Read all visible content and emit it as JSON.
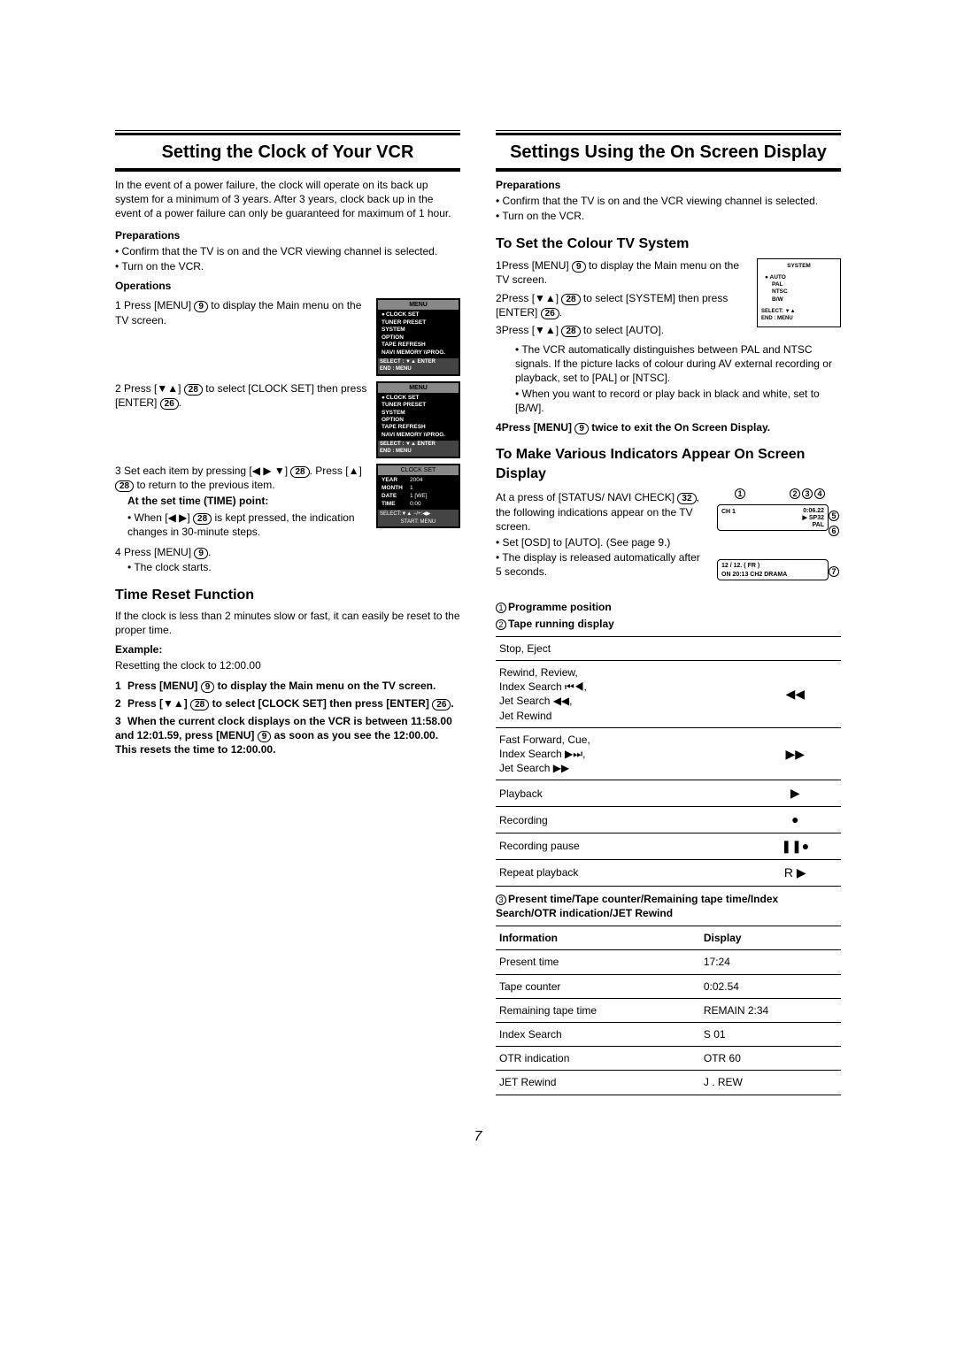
{
  "left": {
    "heading": "Setting the Clock of Your VCR",
    "intro": "In the event of a power failure, the clock will operate on its back up system for a minimum of 3 years. After 3 years, clock back up in the event of a power failure can only be guaranteed for maximum of 1 hour.",
    "prep_h": "Preparations",
    "prep": [
      "Confirm that the TV is on and the VCR viewing channel is selected.",
      "Turn on the VCR."
    ],
    "ops_h": "Operations",
    "step1": "Press [MENU] ",
    "step1b": " to display the Main menu on the TV screen.",
    "step2": "Press [▼▲] ",
    "step2b": " to select [CLOCK SET] then press [ENTER] ",
    "step2c": ".",
    "step3": "Set each item by pressing [◀ ▶ ▼] ",
    "step3b": ". Press [▲] ",
    "step3c": " to return to the previous item.",
    "step3_sub_h": "At the set time (TIME) point:",
    "step3_sub": "When [◀ ▶] ",
    "step3_sub2": " is kept pressed, the indication changes in 30-minute steps.",
    "step4": "Press [MENU] ",
    "step4b": ".",
    "step4_sub": "The clock starts.",
    "time_reset_h": "Time Reset Function",
    "time_reset_p": "If the clock is less than 2 minutes slow or fast, it can easily be reset to the proper time.",
    "example_h": "Example:",
    "example_p": "Resetting the clock to 12:00.00",
    "tr1": "Press [MENU] ",
    "tr1b": " to display the Main menu on the TV screen.",
    "tr2": "Press [▼▲] ",
    "tr2b": " to select [CLOCK SET] then press [ENTER] ",
    "tr2c": ".",
    "tr3a": "When the current clock displays on the VCR is between 11:58.00 and 12:01.59, press [MENU] ",
    "tr3b": " as soon as you see the 12:00.00. This resets the time to 12:00.00.",
    "osd_menu": {
      "title": "MENU",
      "items": [
        "CLOCK SET",
        "TUNER PRESET",
        "SYSTEM",
        "OPTION",
        "TAPE REFRESH",
        "NAVI MEMORY \\\\PROG."
      ],
      "footer1": "SELECT : ▼▲ ENTER",
      "footer2": "END       : MENU"
    },
    "osd_clock": {
      "title": "CLOCK  SET",
      "rows": [
        [
          "YEAR",
          "2004"
        ],
        [
          "MONTH",
          "1"
        ],
        [
          "DATE",
          "1 [WE]"
        ],
        [
          "TIME",
          "0:00"
        ]
      ],
      "footer": "SELECT:▼▲          −/+:◀▶",
      "footer2": "START: MENU"
    }
  },
  "right": {
    "heading": "Settings Using the On Screen Display",
    "prep_h": "Preparations",
    "prep": [
      "Confirm that the TV is on and the VCR viewing channel is selected.",
      "Turn on the VCR."
    ],
    "colour_h": "To Set the Colour TV System",
    "c1a": "Press [MENU] ",
    "c1b": " to display the Main menu on the TV screen.",
    "c2a": "Press [▼▲] ",
    "c2b": " to select [SYSTEM] then press [ENTER] ",
    "c2c": ".",
    "c3a": "Press [▼▲] ",
    "c3b": " to select [AUTO].",
    "c3_sub1": "The VCR automatically distinguishes between PAL and NTSC signals. If the picture lacks of colour during AV external recording or playback, set to [PAL] or [NTSC].",
    "c3_sub2": "When you want to record or play back in black and white, set to [B/W].",
    "c4a": "Press [MENU] ",
    "c4b": " twice to exit the On Screen Display.",
    "sys_box": {
      "title": "SYSTEM",
      "items": [
        "AUTO",
        "PAL",
        "NTSC",
        "B/W"
      ],
      "f1": "SELECT: ▼▲",
      "f2": "END     : MENU"
    },
    "indicators_h": "To Make Various Indicators Appear On Screen Display",
    "ind_p1": "At a press of [STATUS/ NAVI CHECK] ",
    "ind_p1b": ", the following indications appear on the TV screen.",
    "ind_b1": "Set [OSD] to [AUTO]. (See page 9.)",
    "ind_b2": "The display is released automatically after 5 seconds.",
    "label1": "Programme position",
    "label2": "Tape running display",
    "tape_rows": [
      [
        "Stop, Eject",
        ""
      ],
      [
        "Rewind, Review,\nIndex Search ⏮◀,\nJet Search ◀◀,\nJet Rewind",
        "◀◀"
      ],
      [
        "Fast Forward, Cue,\nIndex Search ▶⏭,\nJet Search ▶▶",
        "▶▶"
      ],
      [
        "Playback",
        "▶"
      ],
      [
        "Recording",
        "●"
      ],
      [
        "Recording pause",
        "❚❚●"
      ],
      [
        "Repeat playback",
        "R ▶"
      ]
    ],
    "label3": "Present time/Tape counter/Remaining tape time/Index Search/OTR indication/JET Rewind",
    "info_headers": [
      "Information",
      "Display"
    ],
    "info_rows": [
      [
        "Present time",
        "17:24"
      ],
      [
        "Tape counter",
        "0:02.54"
      ],
      [
        "Remaining tape time",
        "REMAIN 2:34"
      ],
      [
        "Index Search",
        "S 01"
      ],
      [
        "OTR indication",
        "OTR 60"
      ],
      [
        "JET Rewind",
        "J . REW"
      ]
    ],
    "tv": {
      "ch": "CH 1",
      "time": "0:06.22",
      "sp": "▶ SP32",
      "pal": "PAL",
      "bottom": "12 / 12.    ( FR )\nON  20:13  CH2    DRAMA"
    }
  },
  "refs": {
    "r9": "9",
    "r26": "26",
    "r28": "28",
    "r32": "32"
  },
  "pagenum": "7"
}
